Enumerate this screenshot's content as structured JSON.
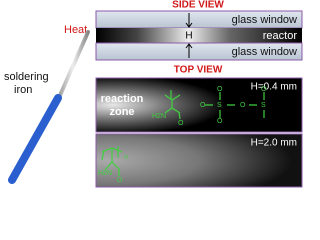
{
  "side_view": {
    "title": "SIDE VIEW",
    "top_label": "glass window",
    "gap_label": "H",
    "reactor_label": "reactor",
    "bottom_label": "glass window"
  },
  "tool": {
    "heat_label": "Heat",
    "name_lines": [
      "soldering",
      "iron"
    ]
  },
  "top_view": {
    "title": "TOP VIEW",
    "panels": [
      {
        "zone_lines": [
          "reaction",
          "zone"
        ],
        "gap_label": "H=0.4 mm",
        "atoms": [
          "H2N",
          "O",
          "O",
          "S",
          "O",
          "O",
          "O",
          "S",
          "O"
        ]
      },
      {
        "gap_label": "H=2.0 mm",
        "atoms": [
          "H2N",
          "O",
          "n"
        ]
      }
    ]
  }
}
